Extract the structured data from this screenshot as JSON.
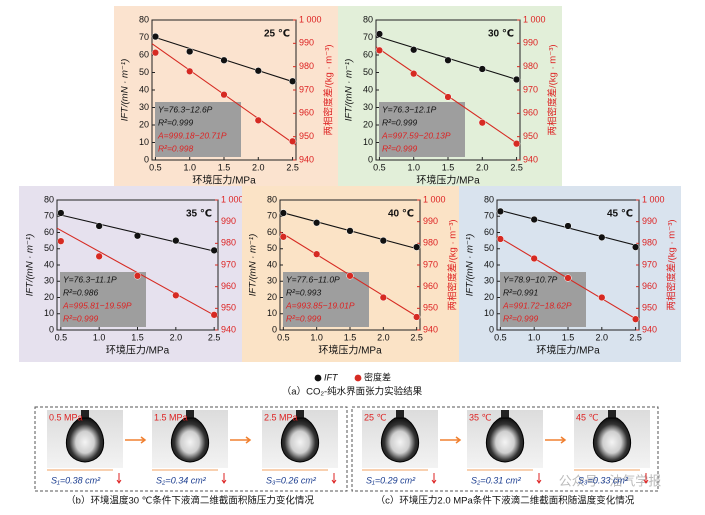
{
  "chart_data": [
    {
      "type": "line",
      "background": "#fbe3cf",
      "label": "25 ℃",
      "x_label": "环境压力/MPa",
      "y_label": "IFT/(mN · m⁻¹)",
      "y2_label": "两相密度差/(kg · m⁻³)",
      "x": [
        0.5,
        1,
        1.5,
        2,
        2.5
      ],
      "xlim": [
        0.45,
        2.55
      ],
      "xticks": [
        0.5,
        {
          "value": 1,
          "label": "1.0"
        },
        1.5,
        {
          "value": 2,
          "label": "2.0"
        },
        2.5
      ],
      "ylim": [
        0,
        80
      ],
      "yticks": [
        0,
        10,
        20,
        30,
        40,
        50,
        60,
        70,
        80
      ],
      "y2lim": [
        940,
        1000
      ],
      "y2ticks": [
        940,
        950,
        960,
        970,
        980,
        990,
        {
          "value": 1000,
          "label": "1 000"
        }
      ],
      "series": [
        {
          "name": "IFT",
          "color": "#111111",
          "values": [
            70.5,
            62,
            57,
            51,
            45
          ],
          "fit": [
            76.3,
            -12.6
          ]
        },
        {
          "name": "密度差",
          "color": "#d62a22",
          "axis": "y2",
          "values": [
            986,
            978,
            968,
            957,
            948
          ],
          "fit": [
            999.18,
            -20.71
          ]
        }
      ],
      "equations": [
        "Y=76.3−12.6P",
        "R²=0.999",
        "A=999.18−20.71P",
        "R²=0.998"
      ]
    },
    {
      "type": "line",
      "background": "#e2efd9",
      "label": "30 ℃",
      "x_label": "环境压力/MPa",
      "y_label": "IFT/(mN · m⁻¹)",
      "y2_label": "两相密度差/(kg · m⁻³)",
      "x": [
        0.5,
        1,
        1.5,
        2,
        2.5
      ],
      "xlim": [
        0.45,
        2.55
      ],
      "xticks": [
        0.5,
        {
          "value": 1,
          "label": "1.0"
        },
        1.5,
        {
          "value": 2,
          "label": "2.0"
        },
        2.5
      ],
      "ylim": [
        0,
        80
      ],
      "yticks": [
        0,
        10,
        20,
        30,
        40,
        50,
        60,
        70,
        80
      ],
      "y2lim": [
        940,
        1000
      ],
      "y2ticks": [
        940,
        950,
        960,
        970,
        980,
        990,
        {
          "value": 1000,
          "label": "1 000"
        }
      ],
      "series": [
        {
          "name": "IFT",
          "color": "#111111",
          "values": [
            72,
            63,
            57,
            52,
            46
          ],
          "fit": [
            76.3,
            -12.1
          ]
        },
        {
          "name": "密度差",
          "color": "#d62a22",
          "axis": "y2",
          "values": [
            987,
            977,
            967,
            956,
            947
          ],
          "fit": [
            997.59,
            -20.13
          ]
        }
      ],
      "equations": [
        "Y=76.3−12.1P",
        "R²=0.999",
        "A=997.59−20.13P",
        "R²=0.999"
      ]
    },
    {
      "type": "line",
      "background": "#e6e1ee",
      "label": "35 ℃",
      "x_label": "环境压力/MPa",
      "y_label": "IFT/(mN · m⁻¹)",
      "y2_label": "两相密度差/(kg · m⁻³)",
      "x": [
        0.5,
        1,
        1.5,
        2,
        2.5
      ],
      "xlim": [
        0.45,
        2.55
      ],
      "xticks": [
        0.5,
        {
          "value": 1,
          "label": "1.0"
        },
        1.5,
        {
          "value": 2,
          "label": "2.0"
        },
        2.5
      ],
      "ylim": [
        0,
        80
      ],
      "yticks": [
        0,
        10,
        20,
        30,
        40,
        50,
        60,
        70,
        80
      ],
      "y2lim": [
        940,
        1000
      ],
      "y2ticks": [
        940,
        950,
        960,
        970,
        980,
        990,
        {
          "value": 1000,
          "label": "1 000"
        }
      ],
      "series": [
        {
          "name": "IFT",
          "color": "#111111",
          "values": [
            72,
            64,
            58,
            55,
            49
          ],
          "fit": [
            76.3,
            -11.1
          ]
        },
        {
          "name": "密度差",
          "color": "#d62a22",
          "axis": "y2",
          "values": [
            981,
            974,
            965,
            956,
            947
          ],
          "fit": [
            995.81,
            -19.59
          ]
        }
      ],
      "equations": [
        "Y=76.3−11.1P",
        "R²=0.986",
        "A=995.81−19.59P",
        "R²=0.999"
      ]
    },
    {
      "type": "line",
      "background": "#fbe3c6",
      "label": "40 ℃",
      "x_label": "环境压力/MPa",
      "y_label": "IFT/(mN · m⁻¹)",
      "y2_label": "两相密度差/(kg · m⁻³)",
      "x": [
        0.5,
        1,
        1.5,
        2,
        2.5
      ],
      "xlim": [
        0.45,
        2.55
      ],
      "xticks": [
        0.5,
        {
          "value": 1,
          "label": "1.0"
        },
        1.5,
        {
          "value": 2,
          "label": "2.0"
        },
        2.5
      ],
      "ylim": [
        0,
        80
      ],
      "yticks": [
        0,
        10,
        20,
        30,
        40,
        50,
        60,
        70,
        80
      ],
      "y2lim": [
        940,
        1000
      ],
      "y2ticks": [
        940,
        950,
        960,
        970,
        980,
        990,
        {
          "value": 1000,
          "label": "1 000"
        }
      ],
      "series": [
        {
          "name": "IFT",
          "color": "#111111",
          "values": [
            72,
            66,
            61,
            55,
            51
          ],
          "fit": [
            77.6,
            -11.0
          ]
        },
        {
          "name": "密度差",
          "color": "#d62a22",
          "axis": "y2",
          "values": [
            983,
            975,
            965,
            955,
            946
          ],
          "fit": [
            993.85,
            -19.01
          ]
        }
      ],
      "equations": [
        "Y=77.6−11.0P",
        "R²=0.993",
        "A=993.85−19.01P",
        "R²=0.999"
      ]
    },
    {
      "type": "line",
      "background": "#d9e3ee",
      "label": "45 ℃",
      "x_label": "环境压力/MPa",
      "y_label": "IFT/(mN · m⁻¹)",
      "y2_label": "两相密度差/(kg · m⁻³)",
      "x": [
        0.5,
        1,
        1.5,
        2,
        2.5
      ],
      "xlim": [
        0.45,
        2.55
      ],
      "xticks": [
        0.5,
        {
          "value": 1,
          "label": "1.0"
        },
        1.5,
        {
          "value": 2,
          "label": "2.0"
        },
        2.5
      ],
      "ylim": [
        0,
        80
      ],
      "yticks": [
        0,
        10,
        20,
        30,
        40,
        50,
        60,
        70,
        80
      ],
      "y2lim": [
        940,
        1000
      ],
      "y2ticks": [
        940,
        950,
        960,
        970,
        980,
        990,
        {
          "value": 1000,
          "label": "1 000"
        }
      ],
      "series": [
        {
          "name": "IFT",
          "color": "#111111",
          "values": [
            73,
            68,
            64,
            57,
            51
          ],
          "fit": [
            78.9,
            -10.7
          ]
        },
        {
          "name": "密度差",
          "color": "#d62a22",
          "axis": "y2",
          "values": [
            982,
            973,
            964,
            955,
            945
          ],
          "fit": [
            991.72,
            -18.62
          ]
        }
      ],
      "equations": [
        "Y=78.9−10.7P",
        "R²=0.991",
        "A=991.72−18.62P",
        "R²=0.999"
      ]
    }
  ],
  "caption_a": "（a）CO₂-纯水界面张力实验结果",
  "panel_b": {
    "labels": [
      "0.5 MPa",
      "1.5 MPa",
      "2.5 MPa"
    ],
    "areas": [
      "S₁=0.38 cm²",
      "S₂=0.34 cm²",
      "S₃=0.26 cm²"
    ],
    "caption": "（b）环境温度30 ℃条件下液滴二维截面积随压力变化情况"
  },
  "panel_c": {
    "labels": [
      "25 ℃",
      "35 ℃",
      "45 ℃"
    ],
    "areas": [
      "S₁=0.29 cm²",
      "S₂=0.31 cm²",
      "S₃=0.33 cm²"
    ],
    "caption": "（c）环境压力2.0 MPa条件下液滴二维截面积随温度变化情况"
  },
  "watermark": "公众号 · 油气学报"
}
